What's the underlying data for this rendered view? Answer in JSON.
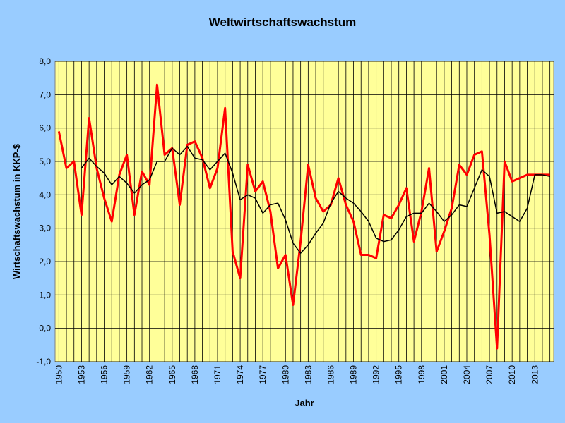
{
  "chart_data": {
    "type": "line",
    "title": "Weltwirtschaftswachstum",
    "xlabel": "Jahr",
    "ylabel": "Wirtschaftswachstum in KKP-$",
    "x": [
      1950,
      1951,
      1952,
      1953,
      1954,
      1955,
      1956,
      1957,
      1958,
      1959,
      1960,
      1961,
      1962,
      1963,
      1964,
      1965,
      1966,
      1967,
      1968,
      1969,
      1970,
      1971,
      1972,
      1973,
      1974,
      1975,
      1976,
      1977,
      1978,
      1979,
      1980,
      1981,
      1982,
      1983,
      1984,
      1985,
      1986,
      1987,
      1988,
      1989,
      1990,
      1991,
      1992,
      1993,
      1994,
      1995,
      1996,
      1997,
      1998,
      1999,
      2000,
      2001,
      2002,
      2003,
      2004,
      2005,
      2006,
      2007,
      2008,
      2009,
      2010,
      2011,
      2012,
      2013,
      2014,
      2015
    ],
    "xlim": [
      1949.5,
      2015.5
    ],
    "xticks": [
      1950,
      1953,
      1956,
      1959,
      1962,
      1965,
      1968,
      1971,
      1974,
      1977,
      1980,
      1983,
      1986,
      1989,
      1992,
      1995,
      1998,
      2001,
      2004,
      2007,
      2010,
      2013
    ],
    "ylim": [
      -1,
      8
    ],
    "yticks": [
      {
        "value": -1,
        "label": "-1,0"
      },
      {
        "value": 0,
        "label": "0,0"
      },
      {
        "value": 1,
        "label": "1,0"
      },
      {
        "value": 2,
        "label": "2,0"
      },
      {
        "value": 3,
        "label": "3,0"
      },
      {
        "value": 4,
        "label": "4,0"
      },
      {
        "value": 5,
        "label": "5,0"
      },
      {
        "value": 6,
        "label": "6,0"
      },
      {
        "value": 7,
        "label": "7,0"
      },
      {
        "value": 8,
        "label": "8,0"
      }
    ],
    "grid": true,
    "series": [
      {
        "color": "#ff0000",
        "width": 3,
        "values": [
          5.9,
          4.8,
          5.0,
          3.4,
          6.3,
          4.8,
          3.9,
          3.2,
          4.6,
          5.2,
          3.4,
          4.7,
          4.3,
          7.3,
          5.2,
          5.4,
          3.7,
          5.5,
          5.6,
          5.1,
          4.2,
          4.8,
          6.6,
          2.3,
          1.5,
          4.9,
          4.1,
          4.4,
          3.5,
          1.8,
          2.2,
          0.7,
          2.6,
          4.9,
          3.9,
          3.5,
          3.7,
          4.5,
          3.7,
          3.2,
          2.2,
          2.2,
          2.1,
          3.4,
          3.3,
          3.7,
          4.2,
          2.6,
          3.5,
          4.8,
          2.3,
          2.9,
          3.6,
          4.9,
          4.6,
          5.2,
          5.3,
          2.8,
          -0.6,
          5.0,
          4.4,
          4.5,
          4.6,
          4.6,
          4.6,
          4.6
        ]
      },
      {
        "color": "#000000",
        "width": 1.5,
        "values": [
          null,
          null,
          null,
          4.8,
          5.1,
          4.85,
          4.65,
          4.3,
          4.55,
          4.35,
          4.05,
          4.3,
          4.45,
          5.0,
          5.0,
          5.4,
          5.2,
          5.45,
          5.1,
          5.05,
          4.75,
          5.0,
          5.25,
          4.65,
          3.85,
          4.0,
          3.9,
          3.45,
          3.7,
          3.75,
          3.25,
          2.55,
          2.25,
          2.5,
          2.85,
          3.15,
          3.75,
          4.1,
          3.9,
          3.75,
          3.5,
          3.2,
          2.7,
          2.6,
          2.65,
          2.95,
          3.35,
          3.45,
          3.45,
          3.75,
          3.5,
          3.2,
          3.4,
          3.7,
          3.65,
          4.2,
          4.75,
          4.55,
          3.45,
          3.5,
          3.35,
          3.2,
          3.6,
          4.6,
          4.6,
          4.55
        ]
      }
    ]
  }
}
